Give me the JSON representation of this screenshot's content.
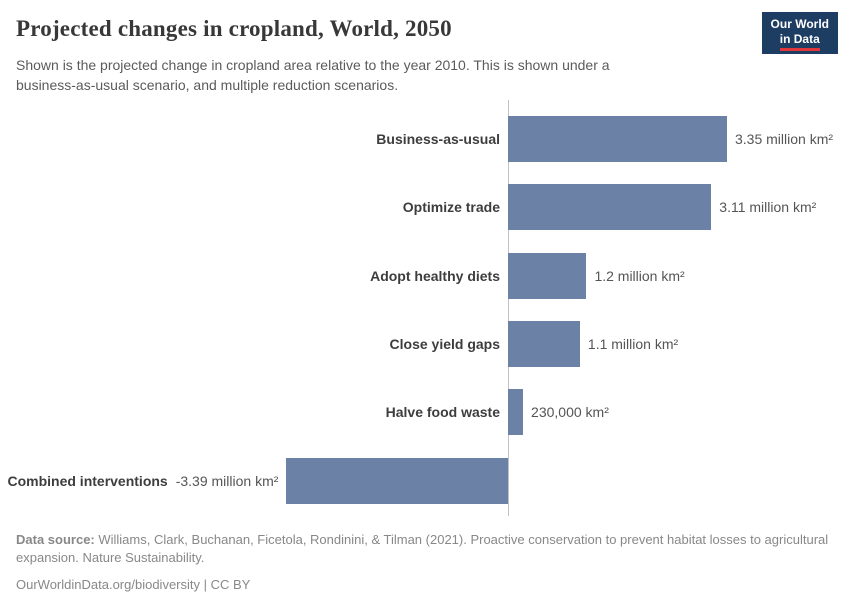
{
  "header": {
    "title": "Projected changes in cropland, World, 2050",
    "subtitle_lines": {
      "line1": "Shown is the projected change in cropland area relative to the year 2010. This is shown under a",
      "line2": "business-as-usual scenario, and multiple reduction scenarios."
    },
    "logo": {
      "line1": "Our World",
      "line2": "in Data"
    }
  },
  "chart_data": {
    "type": "bar",
    "orientation": "horizontal",
    "title": "Projected changes in cropland, World, 2050",
    "unit": "million km²",
    "categories": [
      "Business-as-usual",
      "Optimize trade",
      "Adopt healthy diets",
      "Close yield gaps",
      "Halve food waste",
      "Combined interventions"
    ],
    "values": [
      3.35,
      3.11,
      1.2,
      1.1,
      0.23,
      -3.39
    ],
    "value_labels": [
      "3.35 million km²",
      "3.11 million km²",
      "1.2 million km²",
      "1.1 million km²",
      "230,000 km²",
      "-3.39 million km²"
    ],
    "bar_color": "#6c81a6",
    "xlim": [
      -3.39,
      3.35
    ],
    "baseline": 0,
    "grid": false,
    "legend": "none"
  },
  "footer": {
    "source_label": "Data source:",
    "source_text": " Williams, Clark, Buchanan, Ficetola, Rondinini, & Tilman (2021). Proactive conservation to prevent habitat losses to agricultural expansion. Nature Sustainability.",
    "credit": "OurWorldinData.org/biodiversity | CC BY"
  }
}
